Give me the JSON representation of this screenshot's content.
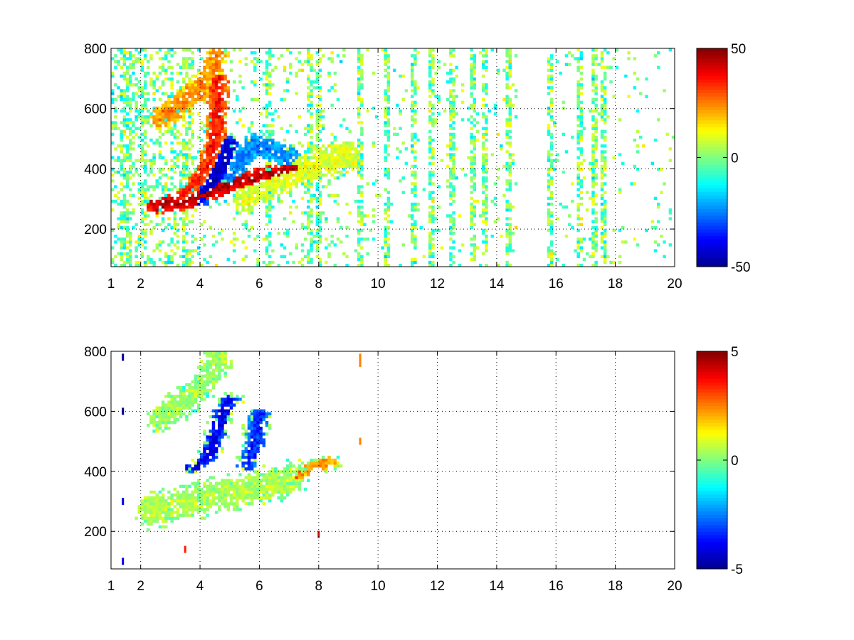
{
  "figure": {
    "background": "#ffffff",
    "grid_color": "#000000"
  },
  "colormap": {
    "name": "jet",
    "stops": [
      "#00008f",
      "#0000ff",
      "#00ffff",
      "#ffff00",
      "#ff0000",
      "#800000"
    ]
  },
  "chart_data": [
    {
      "type": "heatmap",
      "title": "",
      "xlabel": "",
      "ylabel": "",
      "xlim": [
        1,
        20
      ],
      "ylim": [
        75,
        800
      ],
      "x_ticks": [
        1,
        2,
        4,
        6,
        8,
        10,
        12,
        14,
        16,
        18,
        20
      ],
      "x_tick_labels": [
        "1",
        "2",
        "4",
        "6",
        "8",
        "10",
        "12",
        "14",
        "16",
        "18",
        "20"
      ],
      "y_ticks": [
        200,
        400,
        600,
        800
      ],
      "y_tick_labels": [
        "200",
        "400",
        "600",
        "800"
      ],
      "grid": true,
      "grid_style": "dotted",
      "colorbar": {
        "clim": [
          -50,
          50
        ],
        "ticks": [
          -50,
          0,
          50
        ],
        "tick_labels": [
          "-50",
          "0",
          "50"
        ]
      },
      "features": [
        {
          "name": "lower-ridge",
          "points": [
            [
              2.5,
              280
            ],
            [
              3.2,
              285
            ],
            [
              3.8,
              300
            ],
            [
              4.5,
              330
            ],
            [
              5.5,
              365
            ],
            [
              6.5,
              385
            ],
            [
              7.2,
              400
            ]
          ],
          "value": 45,
          "spread_y": 28
        },
        {
          "name": "upper-ridge",
          "points": [
            [
              2.7,
              570
            ],
            [
              3.3,
              610
            ],
            [
              3.9,
              660
            ],
            [
              4.4,
              720
            ],
            [
              4.6,
              780
            ]
          ],
          "value": 25,
          "spread_y": 40
        },
        {
          "name": "curved-arc",
          "points": [
            [
              3.3,
              300
            ],
            [
              3.9,
              360
            ],
            [
              4.3,
              420
            ],
            [
              4.5,
              500
            ],
            [
              4.6,
              600
            ],
            [
              4.6,
              700
            ]
          ],
          "value": 35,
          "spread_y": 20
        },
        {
          "name": "negative-core",
          "points": [
            [
              4.0,
              300
            ],
            [
              4.5,
              360
            ],
            [
              4.8,
              420
            ],
            [
              5.0,
              480
            ]
          ],
          "value": -45,
          "spread_y": 25
        },
        {
          "name": "negative-band",
          "points": [
            [
              5.0,
              360
            ],
            [
              5.4,
              430
            ],
            [
              5.8,
              480
            ],
            [
              6.5,
              460
            ],
            [
              7.0,
              440
            ]
          ],
          "value": -25,
          "spread_y": 35
        },
        {
          "name": "mixed-band",
          "points": [
            [
              5.5,
              300
            ],
            [
              6.0,
              330
            ],
            [
              7.0,
              380
            ],
            [
              8.0,
              420
            ],
            [
              9.0,
              440
            ]
          ],
          "value": 10,
          "spread_y": 50
        }
      ],
      "noise_level": 6,
      "stripe_columns_x": [
        1.4,
        1.6,
        2.1,
        3.5,
        6.3,
        7.7,
        8.0,
        9.4,
        10.3,
        11.2,
        11.8,
        12.5,
        13.2,
        13.6,
        14.4,
        15.8,
        16.8,
        17.3,
        17.6
      ],
      "empty_band_x": [
        14.7,
        15.6
      ]
    },
    {
      "type": "heatmap",
      "title": "",
      "xlabel": "",
      "ylabel": "",
      "xlim": [
        1,
        20
      ],
      "ylim": [
        75,
        800
      ],
      "x_ticks": [
        1,
        2,
        4,
        6,
        8,
        10,
        12,
        14,
        16,
        18,
        20
      ],
      "x_tick_labels": [
        "1",
        "2",
        "4",
        "6",
        "8",
        "10",
        "12",
        "14",
        "16",
        "18",
        "20"
      ],
      "y_ticks": [
        200,
        400,
        600,
        800
      ],
      "y_tick_labels": [
        "200",
        "400",
        "600",
        "800"
      ],
      "grid": true,
      "grid_style": "dotted",
      "colorbar": {
        "clim": [
          -5,
          5
        ],
        "ticks": [
          -5,
          0,
          5
        ],
        "tick_labels": [
          "-5",
          "0",
          "5"
        ]
      },
      "features": [
        {
          "name": "base-cloud",
          "points": [
            [
              2.3,
              270
            ],
            [
              3.0,
              280
            ],
            [
              3.8,
              300
            ],
            [
              4.5,
              320
            ],
            [
              5.5,
              340
            ],
            [
              6.5,
              360
            ],
            [
              7.2,
              380
            ]
          ],
          "value": 0.5,
          "spread_y": 45
        },
        {
          "name": "upper-cloud",
          "points": [
            [
              2.7,
              580
            ],
            [
              3.3,
              620
            ],
            [
              3.9,
              660
            ],
            [
              4.3,
              720
            ],
            [
              4.6,
              770
            ]
          ],
          "value": 0.3,
          "spread_y": 40
        },
        {
          "name": "negative-arc",
          "points": [
            [
              3.8,
              410
            ],
            [
              4.3,
              450
            ],
            [
              4.6,
              540
            ],
            [
              4.8,
              600
            ],
            [
              5.0,
              640
            ]
          ],
          "value": -4,
          "spread_y": 15
        },
        {
          "name": "negative-arc-2",
          "points": [
            [
              5.6,
              420
            ],
            [
              5.8,
              480
            ],
            [
              5.9,
              540
            ],
            [
              6.0,
              590
            ]
          ],
          "value": -3.5,
          "spread_y": 15
        },
        {
          "name": "positive-tail",
          "points": [
            [
              6.5,
              360
            ],
            [
              7.2,
              380
            ],
            [
              8.0,
              420
            ],
            [
              8.3,
              430
            ]
          ],
          "value": 2.5,
          "spread_y": 18
        }
      ],
      "noise_level": 0.6,
      "isolated_marks": [
        {
          "x": 1.4,
          "y": 780,
          "value": -5
        },
        {
          "x": 1.4,
          "y": 600,
          "value": -5
        },
        {
          "x": 1.4,
          "y": 300,
          "value": -4
        },
        {
          "x": 1.4,
          "y": 100,
          "value": -4
        },
        {
          "x": 9.4,
          "y": 780,
          "value": 2.5
        },
        {
          "x": 9.4,
          "y": 760,
          "value": 2.5
        },
        {
          "x": 9.4,
          "y": 500,
          "value": 2.5
        },
        {
          "x": 8.0,
          "y": 190,
          "value": 4
        },
        {
          "x": 3.5,
          "y": 140,
          "value": 3.5
        }
      ]
    }
  ]
}
